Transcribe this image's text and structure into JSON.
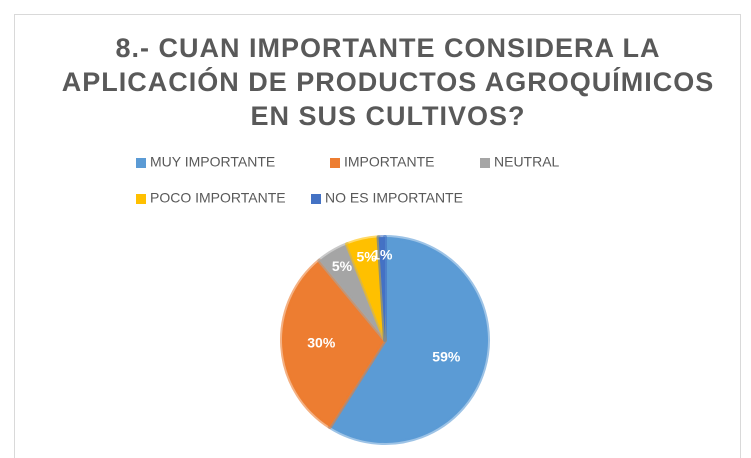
{
  "chart_data": {
    "type": "pie",
    "title": [
      "8.- CUAN IMPORTANTE CONSIDERA LA",
      "APLICACIÓN DE PRODUCTOS AGROQUÍMICOS",
      "EN SUS CULTIVOS?"
    ],
    "categories": [
      "MUY IMPORTANTE",
      "IMPORTANTE",
      "NEUTRAL",
      "POCO IMPORTANTE",
      "NO ES IMPORTANTE"
    ],
    "values": [
      59,
      30,
      5,
      5,
      1
    ],
    "value_labels": [
      "59%",
      "30%",
      "5%",
      "5%",
      "1%"
    ],
    "colors": [
      "#5b9bd5",
      "#ed7d31",
      "#a5a5a5",
      "#ffc000",
      "#4472c4"
    ],
    "legend": "top"
  }
}
